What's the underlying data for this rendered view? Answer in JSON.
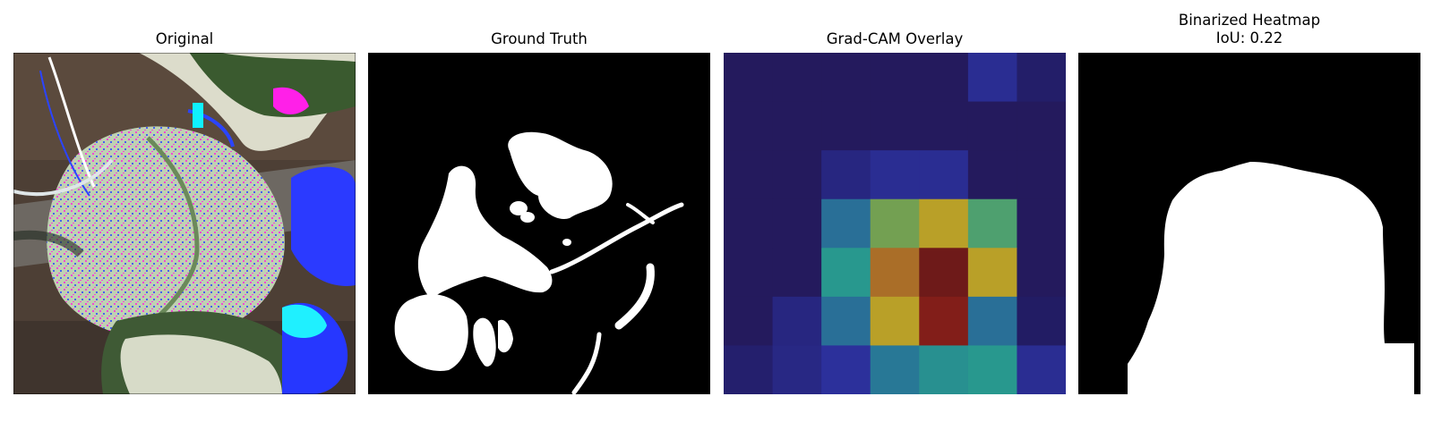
{
  "panels": [
    {
      "title": "Original"
    },
    {
      "title": "Ground Truth"
    },
    {
      "title": "Grad-CAM Overlay"
    },
    {
      "title": "Binarized Heatmap",
      "subtitle": "IoU: 0.22"
    }
  ],
  "heatmap": {
    "grid": [
      [
        0.1,
        0.1,
        0.1,
        0.1,
        0.1,
        0.22,
        0.13
      ],
      [
        0.1,
        0.1,
        0.1,
        0.1,
        0.1,
        0.1,
        0.1
      ],
      [
        0.1,
        0.1,
        0.18,
        0.22,
        0.22,
        0.1,
        0.1
      ],
      [
        0.1,
        0.1,
        0.38,
        0.6,
        0.72,
        0.55,
        0.1
      ],
      [
        0.1,
        0.1,
        0.48,
        0.82,
        0.98,
        0.72,
        0.1
      ],
      [
        0.1,
        0.18,
        0.38,
        0.72,
        0.9,
        0.38,
        0.12
      ],
      [
        0.14,
        0.19,
        0.24,
        0.4,
        0.46,
        0.48,
        0.22
      ]
    ]
  },
  "colors": {
    "background": "#ffffff",
    "mask_bg": "#000000",
    "mask_fg": "#ffffff"
  }
}
